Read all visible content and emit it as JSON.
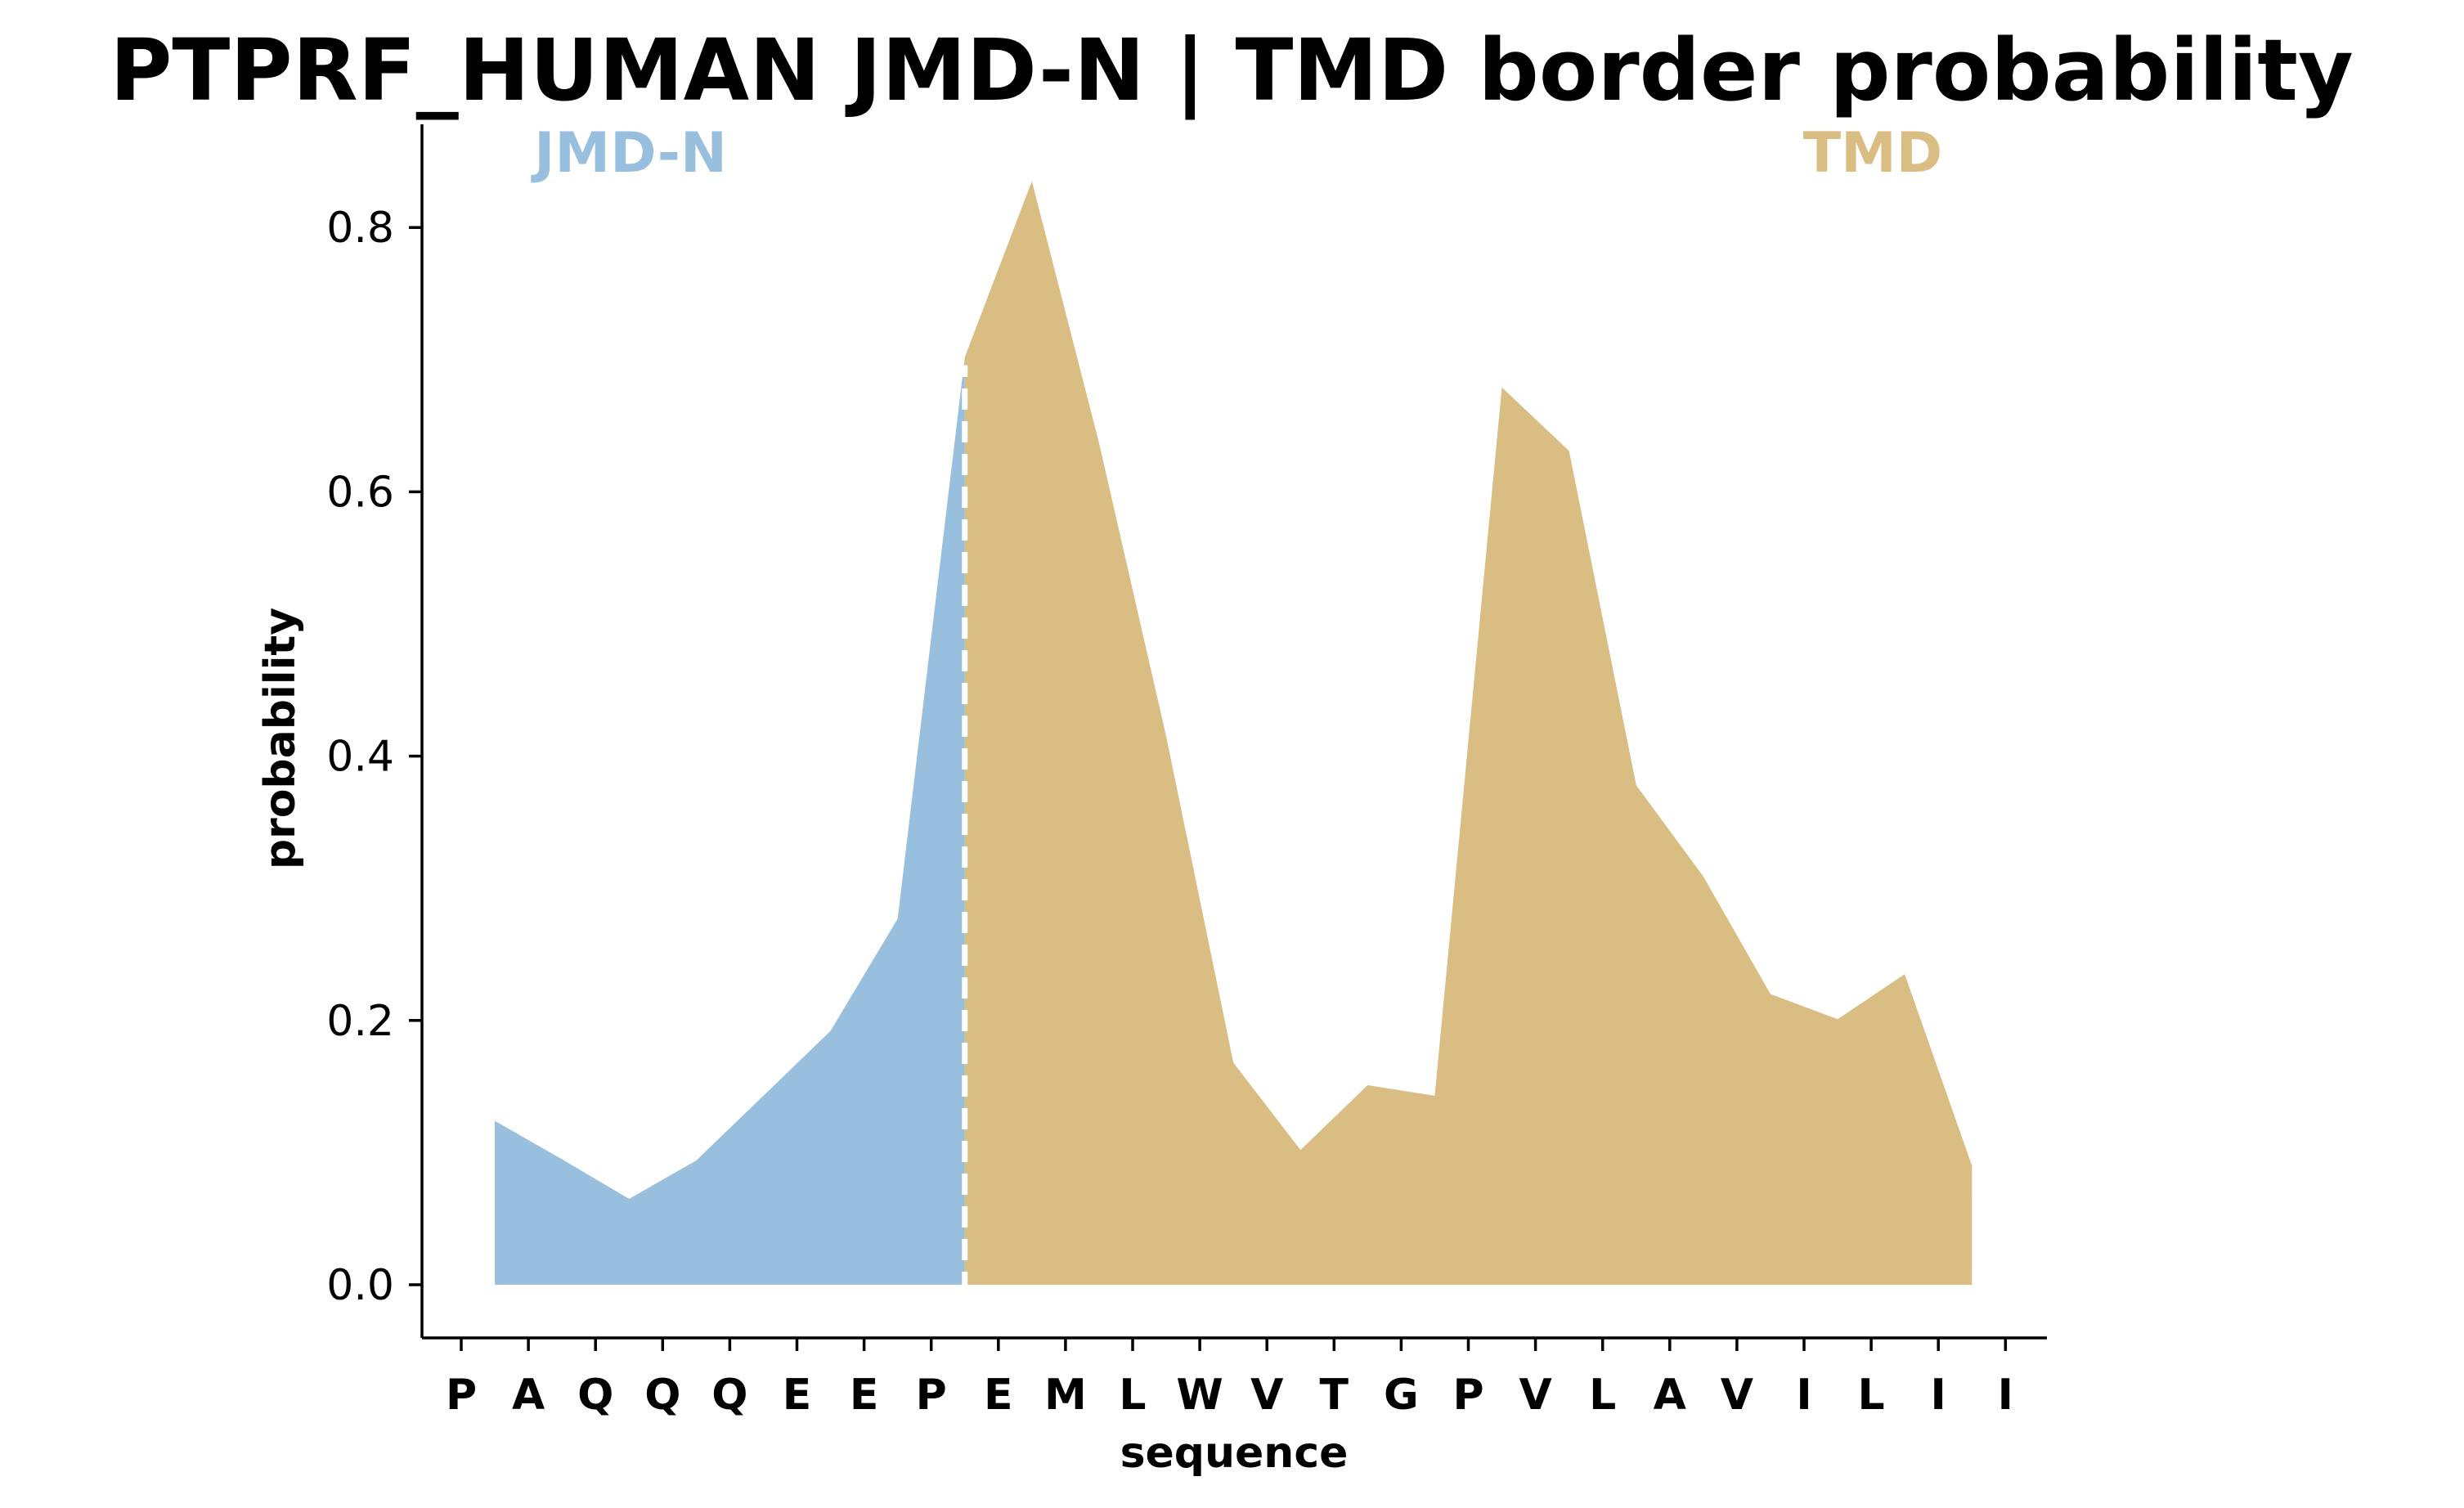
{
  "chart_data": {
    "type": "area",
    "title": "PTPRF_HUMAN JMD-N | TMD border probability",
    "xlabel": "sequence",
    "ylabel": "probability",
    "ylim": [
      -0.04,
      0.875
    ],
    "yticks": [
      0.0,
      0.2,
      0.4,
      0.6,
      0.8
    ],
    "ytick_labels": [
      "0.0",
      "0.2",
      "0.4",
      "0.6",
      "0.8"
    ],
    "categories": [
      "P",
      "A",
      "Q",
      "Q",
      "Q",
      "E",
      "E",
      "P",
      "E",
      "M",
      "L",
      "W",
      "V",
      "T",
      "G",
      "P",
      "V",
      "L",
      "A",
      "V",
      "I",
      "L",
      "I",
      "I"
    ],
    "x": [
      1.5,
      2.5,
      3.5,
      4.5,
      5.5,
      6.5,
      7.5,
      8.0,
      8.5,
      9.5,
      10.5,
      11.5,
      12.5,
      13.5,
      14.5,
      15.5,
      16.5,
      17.5,
      18.5,
      19.5,
      20.5,
      21.5,
      22.5,
      23.5
    ],
    "y": [
      0.124,
      0.095,
      0.065,
      0.094,
      0.143,
      0.192,
      0.277,
      0.49,
      0.702,
      0.835,
      0.637,
      0.415,
      0.168,
      0.102,
      0.151,
      0.143,
      0.679,
      0.631,
      0.378,
      0.309,
      0.22,
      0.201,
      0.235,
      0.09
    ],
    "border_x": 8.5,
    "regions": [
      {
        "name": "JMD-N",
        "label": "JMD-N",
        "x_start": 1.5,
        "x_end": 8.5,
        "color": "#99BFDF"
      },
      {
        "name": "TMD",
        "label": "TMD",
        "x_start": 8.5,
        "x_end": 23.5,
        "color": "#D9BD82"
      }
    ],
    "border_line_color": "#ffffff",
    "grid": false
  }
}
